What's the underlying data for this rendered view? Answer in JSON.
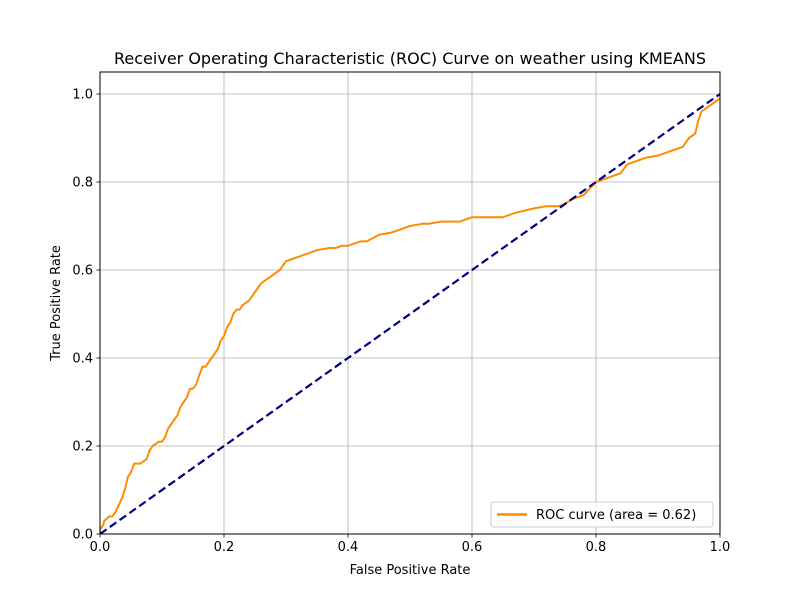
{
  "chart_data": {
    "type": "line",
    "title": "Receiver Operating Characteristic (ROC) Curve on weather using KMEANS",
    "xlabel": "False Positive Rate",
    "ylabel": "True Positive Rate",
    "xlim": [
      0.0,
      1.0
    ],
    "ylim": [
      0.0,
      1.05
    ],
    "xticks": [
      "0.0",
      "0.2",
      "0.4",
      "0.6",
      "0.8",
      "1.0"
    ],
    "yticks": [
      "0.0",
      "0.2",
      "0.4",
      "0.6",
      "0.8",
      "1.0"
    ],
    "grid": true,
    "legend_position": "lower-right",
    "series": [
      {
        "name": "ROC curve (area = 0.62)",
        "color": "#ff8c00",
        "line_style": "solid",
        "x": [
          0.0,
          0.0,
          0.005,
          0.007,
          0.015,
          0.02,
          0.025,
          0.03,
          0.035,
          0.04,
          0.045,
          0.05,
          0.055,
          0.058,
          0.065,
          0.075,
          0.08,
          0.085,
          0.095,
          0.1,
          0.105,
          0.11,
          0.115,
          0.12,
          0.125,
          0.13,
          0.135,
          0.14,
          0.145,
          0.15,
          0.155,
          0.16,
          0.165,
          0.17,
          0.175,
          0.18,
          0.185,
          0.19,
          0.195,
          0.2,
          0.205,
          0.21,
          0.215,
          0.22,
          0.225,
          0.23,
          0.24,
          0.25,
          0.26,
          0.27,
          0.28,
          0.29,
          0.3,
          0.31,
          0.32,
          0.33,
          0.34,
          0.35,
          0.37,
          0.38,
          0.39,
          0.4,
          0.41,
          0.42,
          0.43,
          0.45,
          0.47,
          0.48,
          0.5,
          0.52,
          0.53,
          0.55,
          0.58,
          0.59,
          0.6,
          0.65,
          0.67,
          0.7,
          0.72,
          0.74,
          0.75,
          0.76,
          0.78,
          0.79,
          0.8,
          0.82,
          0.84,
          0.85,
          0.87,
          0.88,
          0.9,
          0.92,
          0.93,
          0.94,
          0.95,
          0.96,
          0.965,
          0.97,
          0.98,
          0.99,
          1.0
        ],
        "y": [
          0.0,
          0.01,
          0.02,
          0.03,
          0.04,
          0.04,
          0.05,
          0.065,
          0.08,
          0.1,
          0.13,
          0.14,
          0.16,
          0.16,
          0.16,
          0.17,
          0.19,
          0.2,
          0.21,
          0.21,
          0.22,
          0.24,
          0.25,
          0.26,
          0.27,
          0.29,
          0.3,
          0.31,
          0.33,
          0.33,
          0.34,
          0.36,
          0.38,
          0.38,
          0.39,
          0.4,
          0.41,
          0.42,
          0.44,
          0.45,
          0.47,
          0.48,
          0.5,
          0.51,
          0.51,
          0.52,
          0.53,
          0.55,
          0.57,
          0.58,
          0.59,
          0.6,
          0.62,
          0.625,
          0.63,
          0.635,
          0.64,
          0.645,
          0.65,
          0.65,
          0.655,
          0.655,
          0.66,
          0.665,
          0.665,
          0.68,
          0.685,
          0.69,
          0.7,
          0.705,
          0.705,
          0.71,
          0.71,
          0.715,
          0.72,
          0.72,
          0.73,
          0.74,
          0.745,
          0.745,
          0.75,
          0.76,
          0.77,
          0.785,
          0.8,
          0.81,
          0.82,
          0.84,
          0.85,
          0.855,
          0.86,
          0.87,
          0.875,
          0.88,
          0.9,
          0.91,
          0.94,
          0.96,
          0.97,
          0.98,
          0.99
        ]
      },
      {
        "color": "#000080",
        "line_style": "dashed",
        "x": [
          0.0,
          1.0
        ],
        "y": [
          0.0,
          1.0
        ]
      }
    ]
  }
}
